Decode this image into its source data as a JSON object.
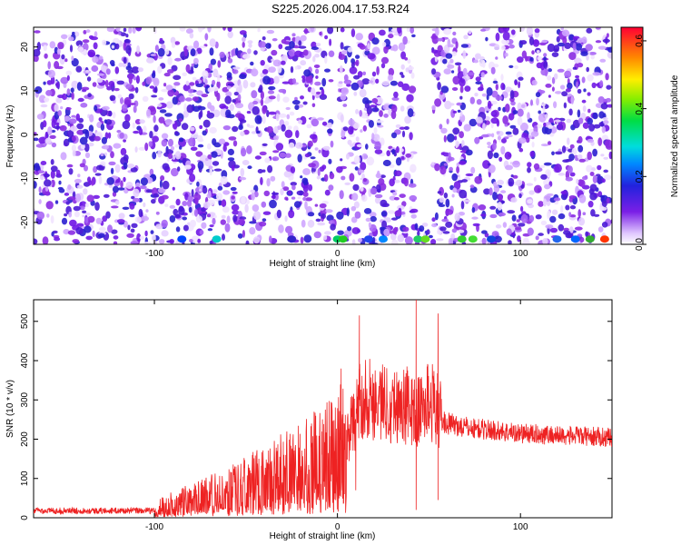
{
  "title": "S225.2026.004.17.53.R24",
  "colors": {
    "snr_line": "#ee2222",
    "heatmap_low": "#f3e4ff",
    "heatmap_mid": "#7722ee",
    "heatmap_high": "#3322cc"
  },
  "chart_data": [
    {
      "type": "heatmap",
      "title": "S225.2026.004.17.53.R24",
      "xlabel": "Height of straight line (km)",
      "ylabel": "Frequency (Hz)",
      "xlim": [
        -166,
        150
      ],
      "ylim": [
        -25,
        24.5
      ],
      "xticks": [
        -100,
        0,
        100
      ],
      "yticks": [
        -20,
        -10,
        0,
        10,
        20
      ],
      "colorbar": {
        "label": "Normalized spectral amplitude",
        "range": [
          0,
          0.64
        ],
        "ticks": [
          0.0,
          0.2,
          0.4,
          0.6
        ],
        "colormap": "rainbow (violet-blue-cyan-green-yellow-red)"
      },
      "grid": false
    },
    {
      "type": "line",
      "xlabel": "Height of straight line (km)",
      "ylabel": "SNR (10 * v/v)",
      "xlim": [
        -166,
        150
      ],
      "ylim": [
        0,
        555
      ],
      "xticks": [
        -100,
        0,
        100
      ],
      "yticks": [
        0,
        100,
        200,
        300,
        400,
        500
      ],
      "grid": false,
      "series": [
        {
          "envelope_x": [
            -166,
            -100,
            -95,
            -80,
            -60,
            -40,
            -30,
            -20,
            -10,
            -5,
            0,
            5,
            10,
            12,
            15,
            20,
            30,
            40,
            43,
            45,
            50,
            55,
            57,
            60,
            70,
            80,
            100,
            120,
            150
          ],
          "envelope_y": [
            18,
            18,
            35,
            50,
            75,
            105,
            125,
            140,
            160,
            175,
            190,
            210,
            250,
            300,
            310,
            300,
            290,
            280,
            260,
            275,
            300,
            280,
            245,
            240,
            230,
            225,
            215,
            210,
            205
          ],
          "spikes": [
            {
              "x": -33,
              "y": 170
            },
            {
              "x": -17,
              "y": 240
            },
            {
              "x": 2,
              "y": 380
            },
            {
              "x": 12,
              "y": 515
            },
            {
              "x": 38,
              "y": 385
            },
            {
              "x": 43,
              "y": 555
            },
            {
              "x": 49,
              "y": 385
            },
            {
              "x": 55,
              "y": 520
            }
          ],
          "dips": [
            {
              "x": 10,
              "y": 70
            },
            {
              "x": 43,
              "y": 20
            },
            {
              "x": 55,
              "y": 45
            }
          ]
        }
      ]
    }
  ]
}
